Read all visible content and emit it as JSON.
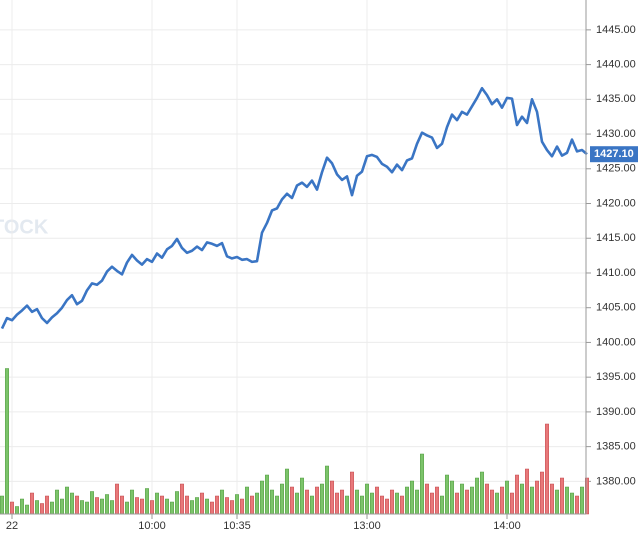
{
  "chart_data": {
    "type": "line",
    "watermark": "TOCK",
    "ylim": [
      1375.3,
      1449.3
    ],
    "yticks": [
      {
        "value": 1380,
        "label": "1380.00"
      },
      {
        "value": 1385,
        "label": "1385.00"
      },
      {
        "value": 1390,
        "label": "1390.00"
      },
      {
        "value": 1395,
        "label": "1395.00"
      },
      {
        "value": 1400,
        "label": "1400.00"
      },
      {
        "value": 1405,
        "label": "1405.00"
      },
      {
        "value": 1410,
        "label": "1410.00"
      },
      {
        "value": 1415,
        "label": "1415.00"
      },
      {
        "value": 1420,
        "label": "1420.00"
      },
      {
        "value": 1425,
        "label": "1425.00"
      },
      {
        "value": 1430,
        "label": "1430.00"
      },
      {
        "value": 1435,
        "label": "1435.00"
      },
      {
        "value": 1440,
        "label": "1440.00"
      },
      {
        "value": 1445,
        "label": "1445.00"
      }
    ],
    "xticks": [
      {
        "value": 2,
        "label": "22"
      },
      {
        "value": 30,
        "label": "10:00"
      },
      {
        "value": 47,
        "label": "10:35"
      },
      {
        "value": 73,
        "label": "13:00"
      },
      {
        "value": 101,
        "label": "14:00"
      }
    ],
    "grid": true,
    "series": [
      {
        "color": "#3a75c4",
        "values": [
          1402.0,
          1403.5,
          1403.2,
          1404.0,
          1404.6,
          1405.3,
          1404.4,
          1404.8,
          1403.5,
          1402.8,
          1403.6,
          1404.2,
          1405.0,
          1406.1,
          1406.8,
          1405.5,
          1406.0,
          1407.5,
          1408.5,
          1408.3,
          1408.9,
          1410.2,
          1410.9,
          1410.3,
          1409.8,
          1411.5,
          1412.6,
          1411.8,
          1411.2,
          1412.0,
          1411.6,
          1412.8,
          1412.2,
          1413.4,
          1413.9,
          1414.9,
          1413.6,
          1412.9,
          1413.2,
          1413.8,
          1413.3,
          1414.4,
          1414.2,
          1413.9,
          1414.3,
          1412.4,
          1412.1,
          1412.3,
          1411.9,
          1412.0,
          1411.6,
          1411.7,
          1415.8,
          1417.2,
          1419.0,
          1419.3,
          1420.6,
          1421.4,
          1420.8,
          1422.6,
          1423.0,
          1422.4,
          1423.3,
          1422.0,
          1424.5,
          1426.6,
          1425.8,
          1424.2,
          1423.4,
          1423.9,
          1421.2,
          1424.0,
          1424.6,
          1426.8,
          1427.0,
          1426.7,
          1425.7,
          1425.3,
          1424.5,
          1425.6,
          1424.8,
          1426.2,
          1426.5,
          1428.6,
          1430.2,
          1429.8,
          1429.5,
          1428.0,
          1428.6,
          1431.0,
          1432.8,
          1432.0,
          1433.2,
          1432.8,
          1434.0,
          1435.2,
          1436.6,
          1435.6,
          1434.3,
          1435.0,
          1433.8,
          1435.2,
          1435.1,
          1431.3,
          1432.5,
          1431.6,
          1435.0,
          1433.2,
          1428.9,
          1427.7,
          1426.8,
          1428.2,
          1426.9,
          1427.3,
          1429.2,
          1427.5,
          1427.7,
          1427.1
        ]
      }
    ],
    "last_value_label": "1427.10",
    "volume": {
      "vlim": [
        0,
        100
      ],
      "up_color": "#7cc46a",
      "down_color": "#e8787a",
      "values": [
        12,
        97,
        8,
        5,
        10,
        6,
        14,
        9,
        7,
        12,
        8,
        16,
        10,
        18,
        14,
        12,
        9,
        8,
        15,
        11,
        10,
        13,
        9,
        20,
        12,
        8,
        16,
        11,
        10,
        17,
        9,
        14,
        12,
        10,
        8,
        15,
        20,
        12,
        9,
        11,
        14,
        10,
        8,
        12,
        16,
        11,
        9,
        13,
        10,
        18,
        12,
        14,
        22,
        26,
        16,
        12,
        20,
        30,
        18,
        14,
        24,
        16,
        12,
        18,
        20,
        32,
        22,
        14,
        16,
        12,
        28,
        16,
        12,
        20,
        14,
        18,
        12,
        10,
        16,
        14,
        12,
        18,
        22,
        16,
        40,
        20,
        14,
        18,
        12,
        26,
        22,
        14,
        20,
        16,
        18,
        24,
        28,
        20,
        16,
        14,
        18,
        22,
        14,
        26,
        20,
        30,
        18,
        22,
        28,
        60,
        20,
        16,
        24,
        18,
        14,
        12,
        18,
        24
      ]
    }
  }
}
